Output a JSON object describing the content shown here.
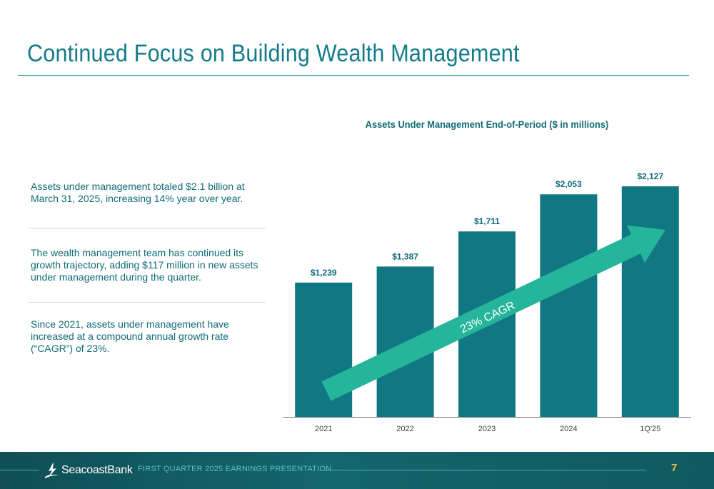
{
  "slide": {
    "title": "Continued Focus on Building Wealth Management"
  },
  "bullets": [
    "Assets under management totaled $2.1 billion at March 31, 2025, increasing 14% year over year.",
    "The wealth management team has continued its growth trajectory, adding $117 million in new assets under management during the quarter.",
    "Since 2021, assets under management have increased at a compound annual growth rate (“CAGR”) of 23%."
  ],
  "chart_data": {
    "type": "bar",
    "title": "Assets Under Management End-of-Period ($ in millions)",
    "categories": [
      "2021",
      "2022",
      "2023",
      "2024",
      "1Q'25"
    ],
    "values": [
      1239,
      1387,
      1711,
      2053,
      2127
    ],
    "data_labels": [
      "$1,239",
      "$1,387",
      "$1,711",
      "$2,053",
      "$2,127"
    ],
    "ylim": [
      0,
      2127
    ],
    "annotation": "23% CAGR",
    "colors": {
      "bar": "#117782",
      "arrow": "#25b59a",
      "label": "#0f6b77",
      "axis": "#7f7f7f"
    }
  },
  "footer": {
    "logo_text": "SeacoastBank",
    "presentation": "FIRST QUARTER 2025 EARNINGS PRESENTATION",
    "page_number": "7",
    "logo_icon": "seacoast-logo-icon"
  }
}
